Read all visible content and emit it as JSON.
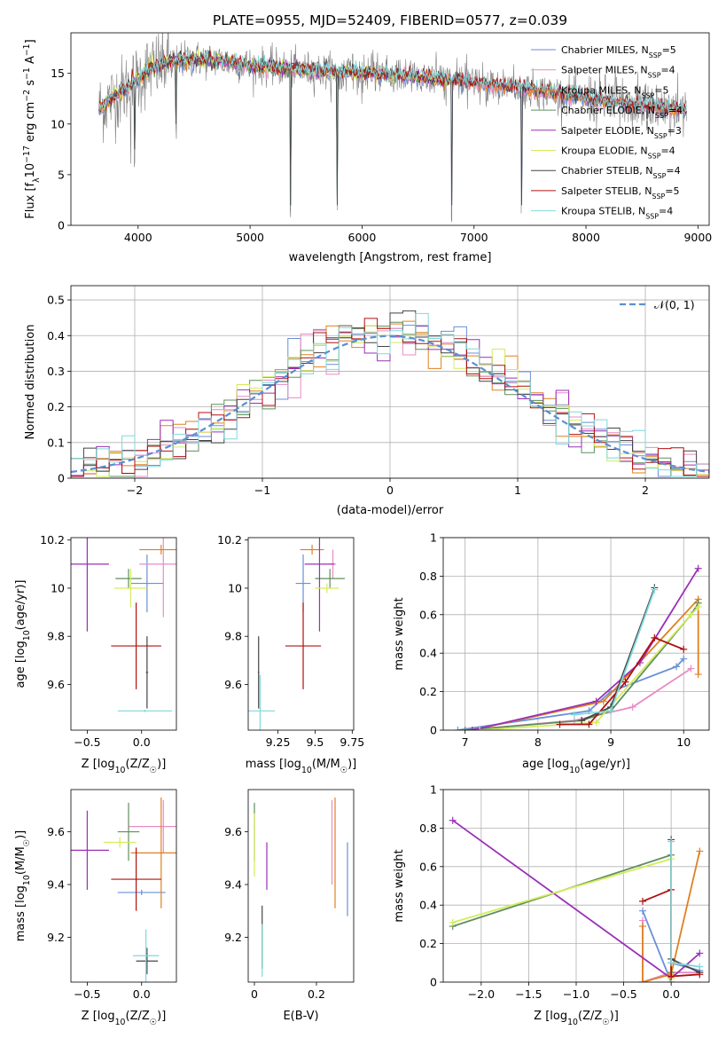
{
  "figure_title": "PLATE=0955, MJD=52409, FIBERID=0577, z=0.039",
  "colors": {
    "Chabrier MILES": "#6a8fd8",
    "Salpeter MILES": "#e88bc4",
    "Kroupa MILES": "#e08020",
    "Chabrier ELODIE": "#5f8f5f",
    "Salpeter ELODIE": "#9a30b8",
    "Kroupa ELODIE": "#d4ec5a",
    "Chabrier STELIB": "#444444",
    "Salpeter STELIB": "#b01010",
    "Kroupa STELIB": "#7fd8dc",
    "data": "#808080"
  },
  "chart_data": [
    {
      "id": "spectrum",
      "type": "line",
      "xlabel": "wavelength [Angstrom, rest frame]",
      "ylabel_main": "Flux [f",
      "ylabel_sub": "λ",
      "ylabel_mid": "10",
      "ylabel_sup1": "−17",
      "ylabel_rest": " erg cm",
      "ylabel_sup2": "−2",
      "ylabel_rest2": " s",
      "ylabel_sup3": "−1",
      "ylabel_rest3": " A",
      "ylabel_sup4": "−1",
      "ylabel_end": "]",
      "xlim": [
        3400,
        9100
      ],
      "ylim": [
        0,
        19
      ],
      "xticks": [
        4000,
        5000,
        6000,
        7000,
        8000,
        9000
      ],
      "yticks": [
        0,
        5,
        10,
        15
      ],
      "legend_position": "top-right",
      "legend": [
        {
          "model": "Chabrier MILES",
          "n": "5"
        },
        {
          "model": "Salpeter MILES",
          "n": "4"
        },
        {
          "model": "Kroupa MILES",
          "n": "5"
        },
        {
          "model": "Chabrier ELODIE",
          "n": "4"
        },
        {
          "model": "Salpeter ELODIE",
          "n": "3"
        },
        {
          "model": "Kroupa ELODIE",
          "n": "4"
        },
        {
          "model": "Chabrier STELIB",
          "n": "4"
        },
        {
          "model": "Salpeter STELIB",
          "n": "5"
        },
        {
          "model": "Kroupa STELIB",
          "n": "4"
        }
      ],
      "legend_n_label": "N",
      "legend_n_sub": "SSP",
      "continuum": [
        [
          3650,
          11.5
        ],
        [
          3800,
          12.8
        ],
        [
          3950,
          14.0
        ],
        [
          4100,
          15.4
        ],
        [
          4300,
          16.2
        ],
        [
          4500,
          16.4
        ],
        [
          4700,
          16.3
        ],
        [
          5000,
          15.8
        ],
        [
          5500,
          15.3
        ],
        [
          6000,
          15.0
        ],
        [
          6500,
          14.6
        ],
        [
          7000,
          14.1
        ],
        [
          7400,
          13.6
        ],
        [
          7800,
          12.9
        ],
        [
          8200,
          12.2
        ],
        [
          8600,
          11.7
        ],
        [
          8900,
          11.4
        ]
      ],
      "dips": [
        [
          3934,
          5.0
        ],
        [
          3968,
          5.5
        ],
        [
          4340,
          8.0
        ],
        [
          5360,
          0.0
        ],
        [
          5780,
          0.0
        ],
        [
          6800,
          0.0
        ],
        [
          7425,
          0.0
        ],
        [
          8250,
          9.0
        ],
        [
          8545,
          8.5
        ],
        [
          8662,
          8.8
        ]
      ]
    },
    {
      "id": "residuals",
      "type": "histogram",
      "xlabel": "(data-model)/error",
      "ylabel": "Normed distribution",
      "xlim": [
        -2.5,
        2.5
      ],
      "ylim": [
        0,
        0.54
      ],
      "xticks": [
        -2,
        -1,
        0,
        1,
        2
      ],
      "yticks": [
        0.0,
        0.1,
        0.2,
        0.3,
        0.4,
        0.5
      ],
      "legend_label": "𝒩(0, 1)",
      "legend_position": "top-right",
      "grid": true,
      "bin_width": 0.1,
      "bin_range": [
        -2.5,
        2.5
      ]
    },
    {
      "id": "age_vs_Z",
      "type": "errorbar",
      "xlabel_main": "Z [log",
      "xlabel_sub": "10",
      "xlabel_end": "(Z/Z",
      "xlabel_sun": "☉",
      "xlabel_close": ")]",
      "ylabel": "age  [log10(age/yr)]",
      "xlim": [
        -0.65,
        0.32
      ],
      "ylim": [
        9.41,
        10.21
      ],
      "xticks": [
        -0.5,
        0.0
      ],
      "xticklabels": [
        "−0.5",
        "0.0"
      ],
      "yticks": [
        9.6,
        9.8,
        10.0,
        10.2
      ],
      "points": [
        {
          "model": "Chabrier MILES",
          "x": 0.05,
          "xerr": 0.15,
          "y": 10.02,
          "yerr": 0.12
        },
        {
          "model": "Salpeter MILES",
          "x": 0.2,
          "xerr": 0.22,
          "y": 10.1,
          "yerr": 0.22
        },
        {
          "model": "Kroupa MILES",
          "x": 0.18,
          "xerr": 0.2,
          "y": 10.16,
          "yerr": 0.02
        },
        {
          "model": "Chabrier ELODIE",
          "x": -0.12,
          "xerr": 0.12,
          "y": 10.04,
          "yerr": 0.04
        },
        {
          "model": "Salpeter ELODIE",
          "x": -0.5,
          "xerr": 0.2,
          "y": 10.1,
          "yerr": 0.28
        },
        {
          "model": "Kroupa ELODIE",
          "x": -0.1,
          "xerr": 0.15,
          "y": 10.0,
          "yerr": 0.08
        },
        {
          "model": "Chabrier STELIB",
          "x": 0.05,
          "xerr": 0.01,
          "y": 9.65,
          "yerr": 0.15
        },
        {
          "model": "Salpeter STELIB",
          "x": -0.05,
          "xerr": 0.23,
          "y": 9.76,
          "yerr": 0.18
        },
        {
          "model": "Kroupa STELIB",
          "x": 0.03,
          "xerr": 0.25,
          "y": 9.49,
          "yerr": 0.005
        }
      ]
    },
    {
      "id": "age_vs_mass",
      "type": "errorbar",
      "xlabel_main": "mass [log",
      "xlabel_sub": "10",
      "xlabel_end": "(M/M",
      "xlabel_sun": "☉",
      "xlabel_close": ")]",
      "xlim": [
        9.05,
        9.76
      ],
      "ylim": [
        9.41,
        10.21
      ],
      "xticks": [
        9.25,
        9.5,
        9.75
      ],
      "yticks": [
        9.6,
        9.8,
        10.0,
        10.2
      ],
      "points": [
        {
          "model": "Chabrier MILES",
          "x": 9.42,
          "xerr": 0.05,
          "y": 10.02,
          "yerr": 0.12
        },
        {
          "model": "Salpeter MILES",
          "x": 9.62,
          "xerr": 0.02,
          "y": 10.1,
          "yerr": 0.06
        },
        {
          "model": "Kroupa MILES",
          "x": 9.48,
          "xerr": 0.08,
          "y": 10.16,
          "yerr": 0.02
        },
        {
          "model": "Chabrier ELODIE",
          "x": 9.6,
          "xerr": 0.1,
          "y": 10.04,
          "yerr": 0.04
        },
        {
          "model": "Salpeter ELODIE",
          "x": 9.53,
          "xerr": 0.1,
          "y": 10.1,
          "yerr": 0.28
        },
        {
          "model": "Kroupa ELODIE",
          "x": 9.58,
          "xerr": 0.08,
          "y": 10.0,
          "yerr": 0.02
        },
        {
          "model": "Chabrier STELIB",
          "x": 9.12,
          "xerr": 0.005,
          "y": 9.65,
          "yerr": 0.15
        },
        {
          "model": "Salpeter STELIB",
          "x": 9.42,
          "xerr": 0.12,
          "y": 9.76,
          "yerr": 0.18
        },
        {
          "model": "Kroupa STELIB",
          "x": 9.13,
          "xerr": 0.1,
          "y": 9.49,
          "yerr": 0.15
        }
      ]
    },
    {
      "id": "mass_weight_vs_age",
      "type": "line",
      "xlabel": "age  [log10(age/yr)]",
      "ylabel": "mass weight",
      "xlim": [
        6.7,
        10.35
      ],
      "ylim": [
        0,
        1
      ],
      "xticks": [
        7,
        8,
        9,
        10
      ],
      "yticks": [
        0.0,
        0.2,
        0.4,
        0.6,
        0.8,
        1.0
      ],
      "grid": true,
      "series": [
        {
          "model": "Chabrier MILES",
          "x": [
            6.9,
            8.7,
            9.0,
            9.9,
            10.0
          ],
          "y": [
            0.0,
            0.1,
            0.2,
            0.33,
            0.37
          ]
        },
        {
          "model": "Salpeter MILES",
          "x": [
            7.0,
            8.5,
            9.3,
            10.1
          ],
          "y": [
            0.0,
            0.05,
            0.12,
            0.32
          ]
        },
        {
          "model": "Kroupa MILES",
          "x": [
            7.1,
            8.9,
            10.2,
            10.2
          ],
          "y": [
            0.0,
            0.15,
            0.68,
            0.29
          ]
        },
        {
          "model": "Chabrier ELODIE",
          "x": [
            7.0,
            8.6,
            9.0,
            10.1,
            10.2
          ],
          "y": [
            0.0,
            0.05,
            0.1,
            0.6,
            0.66
          ]
        },
        {
          "model": "Salpeter ELODIE",
          "x": [
            7.1,
            8.8,
            9.4,
            10.2
          ],
          "y": [
            0.0,
            0.15,
            0.35,
            0.84
          ]
        },
        {
          "model": "Kroupa ELODIE",
          "x": [
            7.2,
            8.8,
            10.1,
            10.2
          ],
          "y": [
            0.0,
            0.04,
            0.6,
            0.64
          ]
        },
        {
          "model": "Chabrier STELIB",
          "x": [
            8.6,
            9.0,
            9.6
          ],
          "y": [
            0.05,
            0.12,
            0.74
          ]
        },
        {
          "model": "Salpeter STELIB",
          "x": [
            8.3,
            8.7,
            9.2,
            9.6,
            10.0
          ],
          "y": [
            0.03,
            0.03,
            0.25,
            0.48,
            0.42
          ]
        },
        {
          "model": "Kroupa STELIB",
          "x": [
            8.5,
            9.0,
            9.6
          ],
          "y": [
            0.08,
            0.1,
            0.73
          ]
        }
      ]
    },
    {
      "id": "mass_vs_Z",
      "type": "errorbar",
      "xlabel_main": "Z [log",
      "xlabel_sub": "10",
      "xlabel_end": "(Z/Z",
      "xlabel_sun": "☉",
      "xlabel_close": ")]",
      "ylabel": "mass [log10(M/M☉)]",
      "xlim": [
        -0.65,
        0.32
      ],
      "ylim": [
        9.03,
        9.76
      ],
      "xticks": [
        -0.5,
        0.0
      ],
      "xticklabels": [
        "−0.5",
        "0.0"
      ],
      "yticks": [
        9.2,
        9.4,
        9.6
      ],
      "points": [
        {
          "model": "Chabrier MILES",
          "x": 0.0,
          "xerr": 0.22,
          "y": 9.37,
          "yerr": 0.01
        },
        {
          "model": "Salpeter MILES",
          "x": 0.2,
          "xerr": 0.32,
          "y": 9.62,
          "yerr": 0.1
        },
        {
          "model": "Kroupa MILES",
          "x": 0.18,
          "xerr": 0.28,
          "y": 9.52,
          "yerr": 0.21
        },
        {
          "model": "Chabrier ELODIE",
          "x": -0.12,
          "xerr": 0.1,
          "y": 9.6,
          "yerr": 0.11
        },
        {
          "model": "Salpeter ELODIE",
          "x": -0.5,
          "xerr": 0.2,
          "y": 9.53,
          "yerr": 0.15
        },
        {
          "model": "Kroupa ELODIE",
          "x": -0.2,
          "xerr": 0.15,
          "y": 9.56,
          "yerr": 0.02
        },
        {
          "model": "Chabrier STELIB",
          "x": 0.05,
          "xerr": 0.1,
          "y": 9.11,
          "yerr": 0.05
        },
        {
          "model": "Salpeter STELIB",
          "x": -0.05,
          "xerr": 0.23,
          "y": 9.42,
          "yerr": 0.12
        },
        {
          "model": "Kroupa STELIB",
          "x": 0.04,
          "xerr": 0.12,
          "y": 9.13,
          "yerr": 0.1
        }
      ]
    },
    {
      "id": "mass_vs_ebv",
      "type": "errorbar",
      "xlabel": "E(B-V)",
      "xlim": [
        -0.02,
        0.32
      ],
      "ylim": [
        9.03,
        9.76
      ],
      "xticks": [
        0.0,
        0.2
      ],
      "yticks": [
        9.2,
        9.4,
        9.6
      ],
      "points": [
        {
          "model": "Chabrier MILES",
          "x": 0.3,
          "xerr": 0,
          "y": 9.42,
          "yerr": 0.14
        },
        {
          "model": "Salpeter MILES",
          "x": 0.25,
          "xerr": 0,
          "y": 9.56,
          "yerr": 0.16
        },
        {
          "model": "Kroupa MILES",
          "x": 0.26,
          "xerr": 0,
          "y": 9.52,
          "yerr": 0.21
        },
        {
          "model": "Chabrier ELODIE",
          "x": 0.0,
          "xerr": 0,
          "y": 9.6,
          "yerr": 0.11
        },
        {
          "model": "Salpeter ELODIE",
          "x": 0.04,
          "xerr": 0,
          "y": 9.47,
          "yerr": 0.09
        },
        {
          "model": "Kroupa ELODIE",
          "x": 0.0,
          "xerr": 0,
          "y": 9.55,
          "yerr": 0.12
        },
        {
          "model": "Chabrier STELIB",
          "x": 0.025,
          "xerr": 0,
          "y": 9.2,
          "yerr": 0.12
        },
        {
          "model": "Salpeter STELIB",
          "x": 0.04,
          "xerr": 0,
          "y": 9.42,
          "yerr": 0.0
        },
        {
          "model": "Kroupa STELIB",
          "x": 0.025,
          "xerr": 0,
          "y": 9.15,
          "yerr": 0.1
        }
      ]
    },
    {
      "id": "mass_weight_vs_Z",
      "type": "line",
      "xlabel_main": "Z [log",
      "xlabel_sub": "10",
      "xlabel_end": "(Z/Z",
      "xlabel_sun": "☉",
      "xlabel_close": ")]",
      "ylabel": "mass weight",
      "xlim": [
        -2.4,
        0.4
      ],
      "ylim": [
        0,
        1
      ],
      "xticks": [
        -2.0,
        -1.5,
        -1.0,
        -0.5,
        0.0
      ],
      "xticklabels": [
        "−2.0",
        "−1.5",
        "−1.0",
        "−0.5",
        "0.0"
      ],
      "yticks": [
        0.0,
        0.2,
        0.4,
        0.6,
        0.8,
        1.0
      ],
      "grid": true,
      "series": [
        {
          "model": "Chabrier MILES",
          "x": [
            -0.3,
            0.0,
            0.0,
            0.3
          ],
          "y": [
            0.37,
            0.0,
            0.1,
            0.06
          ]
        },
        {
          "model": "Salpeter MILES",
          "x": [
            -0.3,
            -0.3,
            0.0,
            0.3
          ],
          "y": [
            0.32,
            0.0,
            0.05,
            0.05
          ]
        },
        {
          "model": "Kroupa MILES",
          "x": [
            -0.3,
            -0.3,
            0.0,
            0.3
          ],
          "y": [
            0.29,
            0.0,
            0.04,
            0.68
          ]
        },
        {
          "model": "Chabrier ELODIE",
          "x": [
            -2.3,
            0.0,
            0.0
          ],
          "y": [
            0.29,
            0.66,
            0.05
          ]
        },
        {
          "model": "Salpeter ELODIE",
          "x": [
            -2.3,
            0.0,
            0.3
          ],
          "y": [
            0.84,
            0.02,
            0.15
          ]
        },
        {
          "model": "Kroupa ELODIE",
          "x": [
            -2.3,
            0.0,
            0.0
          ],
          "y": [
            0.31,
            0.64,
            0.02
          ]
        },
        {
          "model": "Chabrier STELIB",
          "x": [
            0.0,
            0.0,
            0.3
          ],
          "y": [
            0.74,
            0.12,
            0.05
          ]
        },
        {
          "model": "Salpeter STELIB",
          "x": [
            -0.3,
            0.0,
            0.0,
            0.3
          ],
          "y": [
            0.42,
            0.48,
            0.03,
            0.04
          ]
        },
        {
          "model": "Kroupa STELIB",
          "x": [
            0.0,
            0.0,
            0.3
          ],
          "y": [
            0.73,
            0.1,
            0.08
          ]
        }
      ]
    }
  ]
}
